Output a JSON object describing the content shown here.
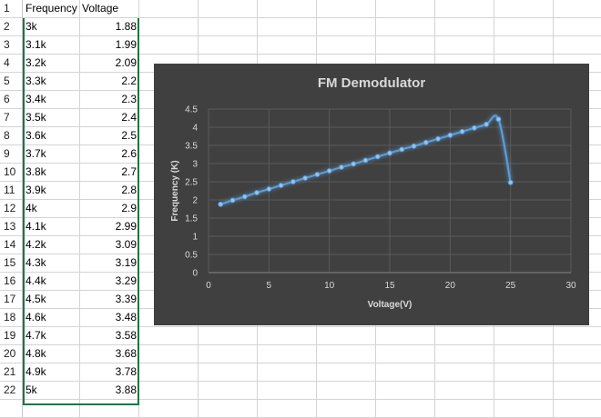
{
  "sheet": {
    "rows": [
      {
        "n": "1",
        "a": "Frequency",
        "b": "Voltage"
      },
      {
        "n": "2",
        "a": "3k",
        "b": "1.88"
      },
      {
        "n": "3",
        "a": "3.1k",
        "b": "1.99"
      },
      {
        "n": "4",
        "a": "3.2k",
        "b": "2.09"
      },
      {
        "n": "5",
        "a": "3.3k",
        "b": "2.2"
      },
      {
        "n": "6",
        "a": "3.4k",
        "b": "2.3"
      },
      {
        "n": "7",
        "a": "3.5k",
        "b": "2.4"
      },
      {
        "n": "8",
        "a": "3.6k",
        "b": "2.5"
      },
      {
        "n": "9",
        "a": "3.7k",
        "b": "2.6"
      },
      {
        "n": "10",
        "a": "3.8k",
        "b": "2.7"
      },
      {
        "n": "11",
        "a": "3.9k",
        "b": "2.8"
      },
      {
        "n": "12",
        "a": "4k",
        "b": "2.9"
      },
      {
        "n": "13",
        "a": "4.1k",
        "b": "2.99"
      },
      {
        "n": "14",
        "a": "4.2k",
        "b": "3.09"
      },
      {
        "n": "15",
        "a": "4.3k",
        "b": "3.19"
      },
      {
        "n": "16",
        "a": "4.4k",
        "b": "3.29"
      },
      {
        "n": "17",
        "a": "4.5k",
        "b": "3.39"
      },
      {
        "n": "18",
        "a": "4.6k",
        "b": "3.48"
      },
      {
        "n": "19",
        "a": "4.7k",
        "b": "3.58"
      },
      {
        "n": "20",
        "a": "4.8k",
        "b": "3.68"
      },
      {
        "n": "21",
        "a": "4.9k",
        "b": "3.78"
      },
      {
        "n": "22",
        "a": "5k",
        "b": "3.88"
      }
    ]
  },
  "chart_data": {
    "type": "scatter",
    "title": "FM Demodulator",
    "xlabel": "Voltage(V)",
    "ylabel": "Frequency (K)",
    "xlim": [
      0,
      30
    ],
    "ylim": [
      0,
      4.5
    ],
    "xticks": [
      "0",
      "5",
      "10",
      "15",
      "20",
      "25",
      "30"
    ],
    "yticks": [
      "0",
      "0.5",
      "1",
      "1.5",
      "2",
      "2.5",
      "3",
      "3.5",
      "4",
      "4.5"
    ],
    "grid": true,
    "line_color": "#5b9bd5",
    "background": "#404040",
    "series": [
      {
        "x": [
          1,
          2,
          3,
          4,
          5,
          6,
          7,
          8,
          9,
          10,
          11,
          12,
          13,
          14,
          15,
          16,
          17,
          18,
          19,
          20,
          21,
          22,
          23,
          24,
          25
        ],
        "y": [
          1.88,
          1.99,
          2.09,
          2.2,
          2.3,
          2.4,
          2.5,
          2.6,
          2.7,
          2.8,
          2.9,
          2.99,
          3.09,
          3.19,
          3.29,
          3.39,
          3.48,
          3.58,
          3.68,
          3.78,
          3.88,
          3.98,
          4.08,
          4.22,
          2.48
        ]
      }
    ]
  }
}
